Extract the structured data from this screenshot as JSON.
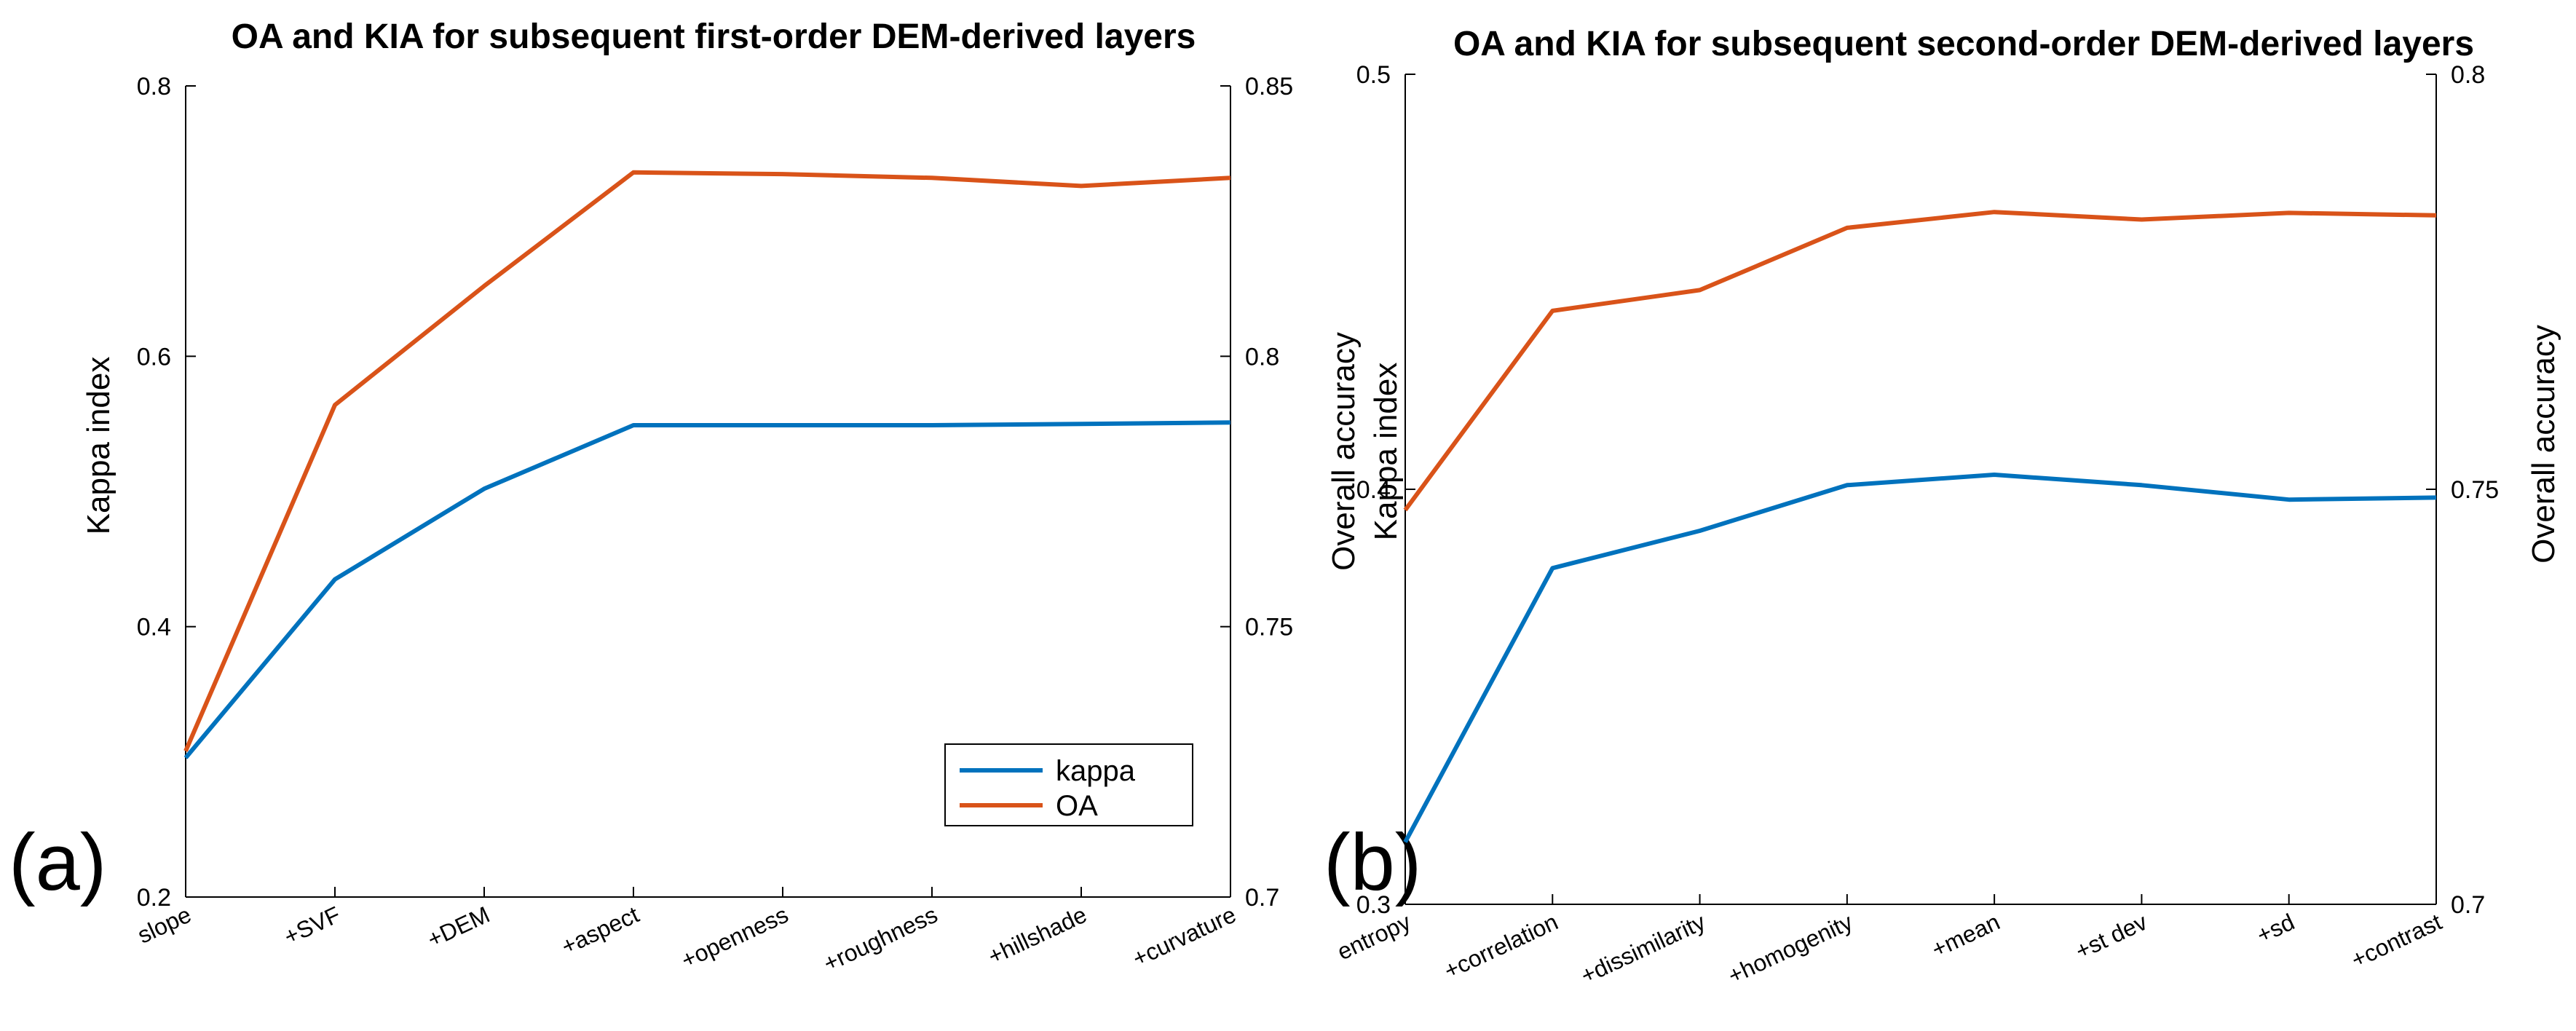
{
  "colors": {
    "kappa": "#0072BD",
    "OA": "#D95319",
    "axis": "#000000",
    "background": "#ffffff"
  },
  "chart_data": [
    {
      "type": "line",
      "panel_label": "(a)",
      "title": "OA and KIA for subsequent first-order DEM-derived layers",
      "categories": [
        "slope",
        "+SVF",
        "+DEM",
        "+aspect",
        "+openness",
        "+roughness",
        "+hillshade",
        "+curvature"
      ],
      "y_left": {
        "label": "Kappa index",
        "lim": [
          0.2,
          0.8
        ],
        "ticks": [
          0.2,
          0.4,
          0.6,
          0.8
        ],
        "tick_labels": [
          "0.2",
          "0.4",
          "0.6",
          "0.8"
        ]
      },
      "y_right": {
        "label": "Overall accuracy",
        "lim": [
          0.7,
          0.85
        ],
        "ticks": [
          0.7,
          0.75,
          0.8,
          0.85
        ],
        "tick_labels": [
          "0.7",
          "0.75",
          "0.8",
          "0.85"
        ]
      },
      "series": [
        {
          "name": "kappa",
          "axis": "left",
          "values": [
            0.303,
            0.435,
            0.502,
            0.549,
            0.549,
            0.549,
            0.55,
            0.551
          ]
        },
        {
          "name": "OA",
          "axis": "right",
          "values": [
            0.727,
            0.791,
            0.813,
            0.834,
            0.8337,
            0.833,
            0.8315,
            0.833
          ]
        }
      ],
      "legend": {
        "position": "bottom-right",
        "entries": [
          "kappa",
          "OA"
        ]
      }
    },
    {
      "type": "line",
      "panel_label": "(b)",
      "title": "OA and KIA for subsequent second-order DEM-derived layers",
      "categories": [
        "entropy",
        "+correlation",
        "+dissimilarity",
        "+homogenity",
        "+mean",
        "+st dev",
        "+sd",
        "+contrast"
      ],
      "y_left": {
        "label": "Kappa index",
        "lim": [
          0.3,
          0.5
        ],
        "ticks": [
          0.3,
          0.4,
          0.5
        ],
        "tick_labels": [
          "0.3",
          "0.4",
          "0.5"
        ]
      },
      "y_right": {
        "label": "Overall accuracy",
        "lim": [
          0.7,
          0.8
        ],
        "ticks": [
          0.7,
          0.75,
          0.8
        ],
        "tick_labels": [
          "0.7",
          "0.75",
          "0.8"
        ]
      },
      "extra_left_label": "Overall accuracy",
      "series": [
        {
          "name": "kappa",
          "axis": "left",
          "values": [
            0.315,
            0.381,
            0.39,
            0.401,
            0.4035,
            0.401,
            0.3975,
            0.398
          ]
        },
        {
          "name": "OA",
          "axis": "right",
          "values": [
            0.7475,
            0.7715,
            0.774,
            0.7815,
            0.7834,
            0.7825,
            0.7833,
            0.783
          ]
        }
      ]
    }
  ]
}
